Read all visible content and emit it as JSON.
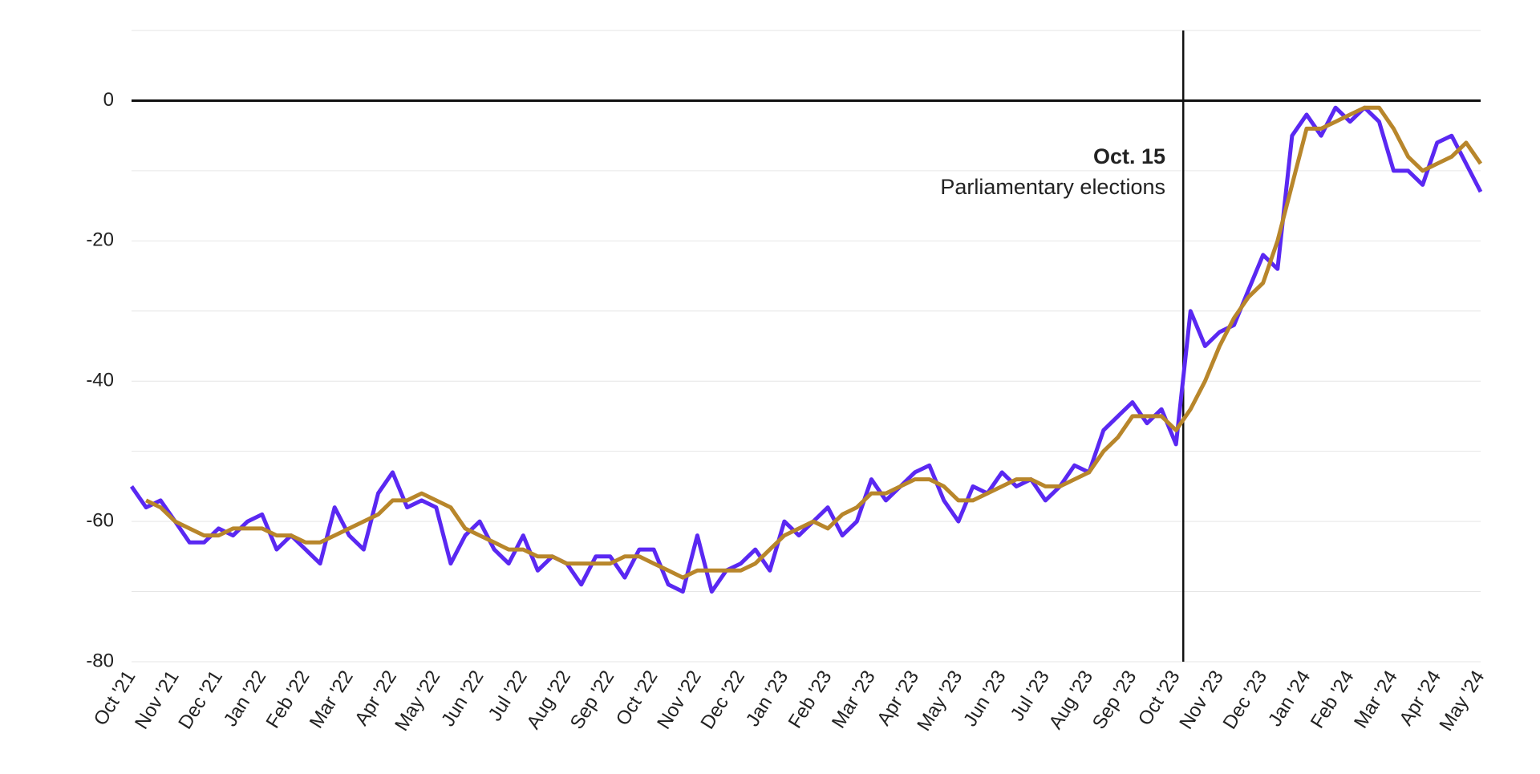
{
  "chart_data": {
    "type": "line",
    "annotation": {
      "title": "Oct. 15",
      "text": "Parliamentary elections"
    },
    "categories": [
      "Oct '21",
      null,
      null,
      "Nov '21",
      null,
      null,
      "Dec '21",
      null,
      null,
      "Jan '22",
      null,
      null,
      "Feb '22",
      null,
      null,
      "Mar '22",
      null,
      null,
      "Apr '22",
      null,
      null,
      "May '22",
      null,
      null,
      "Jun '22",
      null,
      null,
      "Jul '22",
      null,
      null,
      "Aug '22",
      null,
      null,
      "Sep '22",
      null,
      null,
      "Oct '22",
      null,
      null,
      "Nov '22",
      null,
      null,
      "Dec '22",
      null,
      null,
      "Jan '23",
      null,
      null,
      "Feb '23",
      null,
      null,
      "Mar '23",
      null,
      null,
      "Apr '23",
      null,
      null,
      "May '23",
      null,
      null,
      "Jun '23",
      null,
      null,
      "Jul '23",
      null,
      null,
      "Aug '23",
      null,
      null,
      "Sep '23",
      null,
      null,
      "Oct '23",
      null,
      null,
      "Nov '23",
      null,
      null,
      "Dec '23",
      null,
      null,
      "Jan '24",
      null,
      null,
      "Feb '24",
      null,
      null,
      "Mar '24",
      null,
      null,
      "Apr '24",
      null,
      null,
      "May '24"
    ],
    "series": [
      {
        "color": "#5a28f2",
        "values": [
          -55,
          -58,
          -57,
          -60,
          -63,
          -63,
          -61,
          -62,
          -60,
          -59,
          -64,
          -62,
          -64,
          -66,
          -58,
          -62,
          -64,
          -56,
          -53,
          -58,
          -57,
          -58,
          -66,
          -62,
          -60,
          -64,
          -66,
          -62,
          -67,
          -65,
          -66,
          -69,
          -65,
          -65,
          -68,
          -64,
          -64,
          -69,
          -70,
          -62,
          -70,
          -67,
          -66,
          -64,
          -67,
          -60,
          -62,
          -60,
          -58,
          -62,
          -60,
          -54,
          -57,
          -55,
          -53,
          -52,
          -57,
          -60,
          -55,
          -56,
          -53,
          -55,
          -54,
          -57,
          -55,
          -52,
          -53,
          -47,
          -45,
          -43,
          -46,
          -44,
          -49,
          -30,
          -35,
          -33,
          -32,
          -27,
          -22,
          -24,
          -5,
          -2,
          -5,
          -1,
          -3,
          -1,
          -3,
          -10,
          -10,
          -12,
          -6,
          -5,
          -9,
          -13
        ]
      },
      {
        "color": "#b8862b",
        "values": [
          null,
          -57,
          -58,
          -60,
          -61,
          -62,
          -62,
          -61,
          -61,
          -61,
          -62,
          -62,
          -63,
          -63,
          -62,
          -61,
          -60,
          -59,
          -57,
          -57,
          -56,
          -57,
          -58,
          -61,
          -62,
          -63,
          -64,
          -64,
          -65,
          -65,
          -66,
          -66,
          -66,
          -66,
          -65,
          -65,
          -66,
          -67,
          -68,
          -67,
          -67,
          -67,
          -67,
          -66,
          -64,
          -62,
          -61,
          -60,
          -61,
          -59,
          -58,
          -56,
          -56,
          -55,
          -54,
          -54,
          -55,
          -57,
          -57,
          -56,
          -55,
          -54,
          -54,
          -55,
          -55,
          -54,
          -53,
          -50,
          -48,
          -45,
          -45,
          -45,
          -47,
          -44,
          -40,
          -35,
          -31,
          -28,
          -26,
          -20,
          -12,
          -4,
          -4,
          -3,
          -2,
          -1,
          -1,
          -4,
          -8,
          -10,
          -9,
          -8,
          -6,
          -9
        ]
      }
    ],
    "ylim": [
      -80,
      10
    ],
    "yticks": [
      -80,
      -60,
      -40,
      -20,
      0
    ],
    "grid": true
  }
}
